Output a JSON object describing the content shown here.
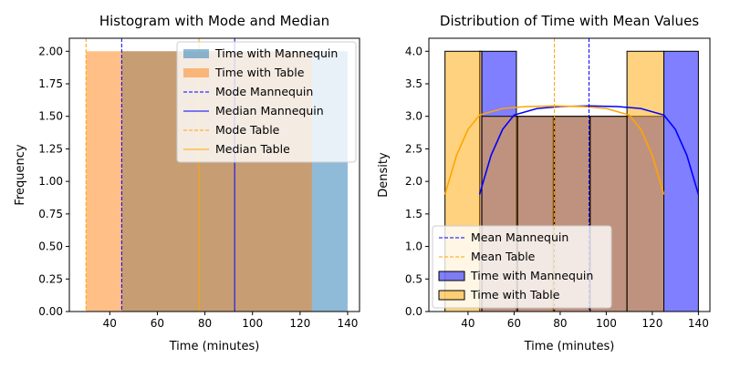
{
  "chart_data": [
    {
      "type": "bar",
      "title": "Histogram with Mode and Median",
      "xlabel": "Time (minutes)",
      "ylabel": "Frequency",
      "xlim": [
        23,
        145
      ],
      "ylim": [
        0,
        2.1
      ],
      "xticks": [
        40,
        60,
        80,
        100,
        120,
        140
      ],
      "yticks": [
        0.0,
        0.25,
        0.5,
        0.75,
        1.0,
        1.25,
        1.5,
        1.75,
        2.0
      ],
      "ytick_labels": [
        "0.00",
        "0.25",
        "0.50",
        "0.75",
        "1.00",
        "1.25",
        "1.50",
        "1.75",
        "2.00"
      ],
      "legend_position": "top-right",
      "series": [
        {
          "name": "Time with Mannequin",
          "color": "#1f77b4",
          "opacity": 0.5,
          "bins": [
            {
              "x0": 45,
              "x1": 125,
              "value": 2
            },
            {
              "x0": 125,
              "x1": 140,
              "value": 2
            }
          ]
        },
        {
          "name": "Time with Table",
          "color": "#ff7f0e",
          "opacity": 0.5,
          "bins": [
            {
              "x0": 30,
              "x1": 125,
              "value": 2
            }
          ]
        }
      ],
      "vlines": [
        {
          "name": "Mode Mannequin",
          "x": 45,
          "color": "#0000ff",
          "style": "dashed"
        },
        {
          "name": "Median Mannequin",
          "x": 92.5,
          "color": "#0000ff",
          "style": "solid"
        },
        {
          "name": "Mode Table",
          "x": 30,
          "color": "#ffa500",
          "style": "dashed"
        },
        {
          "name": "Median Table",
          "x": 77.5,
          "color": "#ffa500",
          "style": "solid"
        }
      ],
      "legend_order": [
        "Time with Mannequin",
        "Time with Table",
        "Mode Mannequin",
        "Median Mannequin",
        "Mode Table",
        "Median Table"
      ]
    },
    {
      "type": "bar",
      "title": "Distribution of Time with Mean Values",
      "xlabel": "Time (minutes)",
      "ylabel": "Density",
      "xlim": [
        23,
        145
      ],
      "ylim": [
        0,
        4.2
      ],
      "xticks": [
        40,
        60,
        80,
        100,
        120,
        140
      ],
      "yticks": [
        0.0,
        0.5,
        1.0,
        1.5,
        2.0,
        2.5,
        3.0,
        3.5,
        4.0
      ],
      "ytick_labels": [
        "0.0",
        "0.5",
        "1.0",
        "1.5",
        "2.0",
        "2.5",
        "3.0",
        "3.5",
        "4.0"
      ],
      "legend_position": "bottom-left",
      "series": [
        {
          "name": "Time with Mannequin",
          "color": "#0000ff",
          "opacity": 0.5,
          "bins": [
            {
              "x0": 45,
              "x1": 61,
              "value": 4
            },
            {
              "x0": 61,
              "x1": 77,
              "value": 3
            },
            {
              "x0": 77,
              "x1": 93,
              "value": 3
            },
            {
              "x0": 93,
              "x1": 109,
              "value": 3
            },
            {
              "x0": 109,
              "x1": 125,
              "value": 3
            },
            {
              "x0": 125,
              "x1": 140,
              "value": 4
            }
          ],
          "kde": [
            [
              45,
              1.8
            ],
            [
              50,
              2.4
            ],
            [
              55,
              2.8
            ],
            [
              60,
              3.02
            ],
            [
              70,
              3.12
            ],
            [
              80,
              3.15
            ],
            [
              92.5,
              3.16
            ],
            [
              105,
              3.15
            ],
            [
              115,
              3.12
            ],
            [
              125,
              3.02
            ],
            [
              130,
              2.8
            ],
            [
              135,
              2.4
            ],
            [
              140,
              1.8
            ]
          ]
        },
        {
          "name": "Time with Table",
          "color": "#ffa500",
          "opacity": 0.5,
          "bins": [
            {
              "x0": 30,
              "x1": 46,
              "value": 4
            },
            {
              "x0": 46,
              "x1": 61.5,
              "value": 3
            },
            {
              "x0": 61.5,
              "x1": 77.5,
              "value": 3
            },
            {
              "x0": 77.5,
              "x1": 93,
              "value": 3
            },
            {
              "x0": 93,
              "x1": 109,
              "value": 3
            },
            {
              "x0": 109,
              "x1": 125,
              "value": 4
            }
          ],
          "kde": [
            [
              30,
              1.8
            ],
            [
              35,
              2.4
            ],
            [
              40,
              2.8
            ],
            [
              45,
              3.02
            ],
            [
              55,
              3.12
            ],
            [
              65,
              3.15
            ],
            [
              77.5,
              3.16
            ],
            [
              90,
              3.15
            ],
            [
              100,
              3.12
            ],
            [
              110,
              3.02
            ],
            [
              115,
              2.8
            ],
            [
              120,
              2.4
            ],
            [
              125,
              1.8
            ]
          ]
        }
      ],
      "vlines": [
        {
          "name": "Mean Mannequin",
          "x": 92.5,
          "color": "#0000ff",
          "style": "dashed"
        },
        {
          "name": "Mean Table",
          "x": 77.5,
          "color": "#ffa500",
          "style": "dashed"
        }
      ],
      "legend_order": [
        "Mean Mannequin",
        "Mean Table",
        "Time with Mannequin",
        "Time with Table"
      ]
    }
  ]
}
